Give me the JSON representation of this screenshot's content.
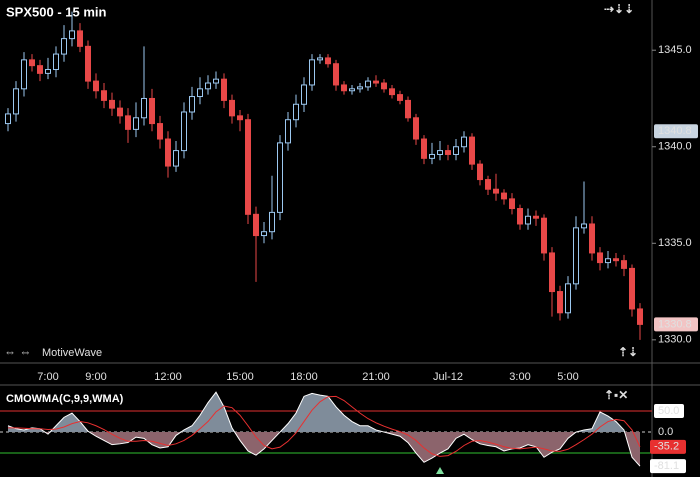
{
  "chart_data": [
    {
      "type": "candlestick",
      "title": "SPX500 - 15 min",
      "watermark": "MotiveWave",
      "categories": [
        null,
        null,
        null,
        null,
        null,
        "7:00",
        null,
        null,
        null,
        null,
        null,
        "9:00",
        null,
        null,
        null,
        null,
        null,
        null,
        null,
        null,
        "12:00",
        null,
        null,
        null,
        null,
        null,
        null,
        null,
        null,
        "15:00",
        null,
        null,
        null,
        null,
        null,
        null,
        null,
        "18:00",
        null,
        null,
        null,
        null,
        null,
        null,
        null,
        null,
        "21:00",
        null,
        null,
        null,
        null,
        null,
        null,
        null,
        null,
        "Jul-12",
        null,
        null,
        null,
        null,
        null,
        null,
        null,
        null,
        "3:00",
        null,
        null,
        null,
        null,
        null,
        "5:00",
        null,
        null,
        null,
        null,
        null,
        null,
        null,
        null,
        null
      ],
      "open": [
        1341.2,
        1341.7,
        1343.0,
        1344.5,
        1344.2,
        1343.8,
        1344.0,
        1344.8,
        1345.6,
        1346.0,
        1345.2,
        1343.4,
        1342.9,
        1342.4,
        1342.0,
        1341.6,
        1340.9,
        1341.5,
        1342.5,
        1341.2,
        1340.4,
        1339.0,
        1339.8,
        1341.8,
        1342.6,
        1343.0,
        1343.3,
        1343.5,
        1342.4,
        1341.6,
        1341.4,
        1336.5,
        1335.4,
        1335.6,
        1336.6,
        1340.2,
        1341.4,
        1342.2,
        1343.2,
        1344.5,
        1344.6,
        1344.3,
        1343.2,
        1342.9,
        1343.0,
        1343.1,
        1343.4,
        1343.3,
        1343.0,
        1342.7,
        1342.4,
        1341.5,
        1340.4,
        1339.4,
        1339.6,
        1339.8,
        1339.6,
        1340.0,
        1340.5,
        1339.1,
        1338.3,
        1337.8,
        1337.6,
        1337.3,
        1336.8,
        1336.0,
        1336.4,
        1336.3,
        1334.5,
        1332.5,
        1331.4,
        1332.9,
        1335.8,
        1336.0,
        1334.5,
        1334.0,
        1334.2,
        1334.1,
        1333.7,
        1331.6
      ],
      "high": [
        1342.0,
        1343.4,
        1344.9,
        1344.8,
        1344.5,
        1344.6,
        1345.2,
        1346.3,
        1347.0,
        1346.4,
        1345.5,
        1343.8,
        1343.3,
        1342.8,
        1342.4,
        1342.0,
        1342.3,
        1345.2,
        1343.0,
        1341.6,
        1340.8,
        1340.3,
        1342.3,
        1343.1,
        1343.6,
        1343.7,
        1343.9,
        1343.8,
        1342.7,
        1341.9,
        1341.7,
        1336.9,
        1336.1,
        1338.5,
        1340.6,
        1341.8,
        1342.7,
        1343.6,
        1344.8,
        1344.8,
        1344.8,
        1344.5,
        1343.4,
        1343.2,
        1343.3,
        1343.6,
        1343.7,
        1343.5,
        1343.2,
        1342.9,
        1342.6,
        1341.7,
        1340.6,
        1340.2,
        1340.3,
        1340.1,
        1340.4,
        1340.8,
        1340.7,
        1339.3,
        1338.5,
        1338.6,
        1337.8,
        1337.6,
        1337.0,
        1336.8,
        1336.7,
        1336.5,
        1334.8,
        1332.8,
        1333.3,
        1336.4,
        1338.2,
        1336.4,
        1334.8,
        1334.6,
        1334.5,
        1334.4,
        1333.9,
        1331.9
      ],
      "low": [
        1340.8,
        1341.3,
        1342.6,
        1343.9,
        1343.4,
        1343.5,
        1343.6,
        1344.4,
        1345.2,
        1344.9,
        1343.0,
        1342.5,
        1342.0,
        1341.6,
        1341.2,
        1340.2,
        1340.5,
        1341.1,
        1340.8,
        1339.9,
        1338.4,
        1338.7,
        1339.4,
        1341.4,
        1342.2,
        1342.7,
        1343.0,
        1342.0,
        1341.2,
        1340.8,
        1336.0,
        1333.0,
        1335.0,
        1335.2,
        1336.2,
        1339.8,
        1341.0,
        1341.8,
        1342.9,
        1344.3,
        1344.1,
        1342.9,
        1342.7,
        1342.7,
        1342.8,
        1342.9,
        1343.1,
        1342.8,
        1342.5,
        1342.2,
        1341.3,
        1340.1,
        1339.1,
        1339.1,
        1339.3,
        1339.3,
        1339.3,
        1339.7,
        1338.8,
        1338.0,
        1337.5,
        1337.2,
        1337.0,
        1336.5,
        1335.7,
        1335.7,
        1335.9,
        1334.1,
        1331.2,
        1331.0,
        1331.1,
        1332.6,
        1335.5,
        1334.1,
        1333.6,
        1333.7,
        1333.8,
        1333.3,
        1331.2,
        1330.0
      ],
      "close": [
        1341.7,
        1343.0,
        1344.5,
        1344.2,
        1343.8,
        1344.0,
        1344.8,
        1345.6,
        1346.0,
        1345.2,
        1343.4,
        1342.9,
        1342.4,
        1342.0,
        1341.6,
        1340.9,
        1341.5,
        1342.5,
        1341.2,
        1340.4,
        1339.0,
        1339.8,
        1341.8,
        1342.6,
        1343.0,
        1343.3,
        1343.5,
        1342.4,
        1341.6,
        1341.4,
        1336.5,
        1335.4,
        1335.6,
        1336.6,
        1340.2,
        1341.4,
        1342.2,
        1343.2,
        1344.5,
        1344.6,
        1344.3,
        1343.2,
        1342.9,
        1343.0,
        1343.1,
        1343.4,
        1343.3,
        1343.0,
        1342.7,
        1342.4,
        1341.5,
        1340.4,
        1339.4,
        1339.6,
        1339.8,
        1339.6,
        1340.0,
        1340.5,
        1339.1,
        1338.3,
        1337.8,
        1337.6,
        1337.3,
        1336.8,
        1336.0,
        1336.4,
        1336.3,
        1334.5,
        1332.5,
        1331.4,
        1332.9,
        1335.8,
        1336.0,
        1334.5,
        1334.0,
        1334.2,
        1334.1,
        1333.7,
        1331.6,
        1330.8
      ],
      "up_color": "#9cc8f0",
      "down_color": "#e84848",
      "ylim": [
        1328.8,
        1347.6
      ],
      "yticks": [
        {
          "value": 1345,
          "label": "1345.0"
        },
        {
          "value": 1340,
          "label": "1340.0"
        },
        {
          "value": 1335,
          "label": "1335.0"
        },
        {
          "value": 1330,
          "label": "1330.0"
        }
      ],
      "price_markers": [
        1340.8,
        1330.8
      ],
      "price_marker_colors": [
        "#c8d4e0",
        "#f2c4c4"
      ]
    },
    {
      "type": "indicator",
      "title": "CMOWMA(C,9,9,WMA)",
      "series": [
        {
          "color": "#ffffff",
          "values": [
            15,
            8,
            5,
            10,
            8,
            -5,
            15,
            35,
            45,
            25,
            2,
            -10,
            -20,
            -30,
            -28,
            -25,
            -12,
            -15,
            -30,
            -38,
            -35,
            -8,
            5,
            15,
            40,
            70,
            95,
            60,
            10,
            -20,
            -45,
            -55,
            -40,
            -20,
            0,
            20,
            45,
            85,
            92,
            88,
            85,
            60,
            40,
            25,
            15,
            15,
            5,
            0,
            -5,
            -10,
            -25,
            -50,
            -72,
            -62,
            -50,
            -40,
            -15,
            -5,
            -18,
            -28,
            -32,
            -35,
            -45,
            -40,
            -38,
            -30,
            -35,
            -60,
            -48,
            -40,
            -15,
            0,
            5,
            8,
            48,
            38,
            25,
            5,
            -60,
            -81.1
          ]
        },
        {
          "color": "#e83030",
          "values": [
            10,
            10,
            9,
            8,
            8,
            6,
            7,
            12,
            20,
            25,
            22,
            15,
            6,
            -5,
            -15,
            -22,
            -22,
            -20,
            -22,
            -27,
            -32,
            -28,
            -20,
            -8,
            8,
            25,
            48,
            62,
            58,
            40,
            15,
            -12,
            -32,
            -40,
            -36,
            -22,
            -2,
            25,
            52,
            72,
            84,
            85,
            75,
            60,
            45,
            32,
            22,
            14,
            7,
            1,
            -7,
            -20,
            -38,
            -52,
            -58,
            -56,
            -46,
            -32,
            -22,
            -20,
            -24,
            -29,
            -35,
            -39,
            -40,
            -38,
            -36,
            -40,
            -45,
            -46,
            -41,
            -30,
            -18,
            -5,
            12,
            25,
            30,
            27,
            5,
            -35.2
          ]
        }
      ],
      "area_colors": [
        "#7f8c9a",
        "#8c646c"
      ],
      "ylim": [
        -107,
        112
      ],
      "yticks": [
        {
          "value": 50,
          "label": "50.0"
        },
        {
          "value": 0,
          "label": "0.0"
        }
      ],
      "upper_level": 50,
      "upper_level_color": "#e03030",
      "lower_level": -50,
      "lower_level_color": "#30c030",
      "value_markers": [
        -35.2,
        -81.1
      ],
      "value_marker_colors": [
        "#e83030",
        "#ffffff"
      ]
    }
  ]
}
